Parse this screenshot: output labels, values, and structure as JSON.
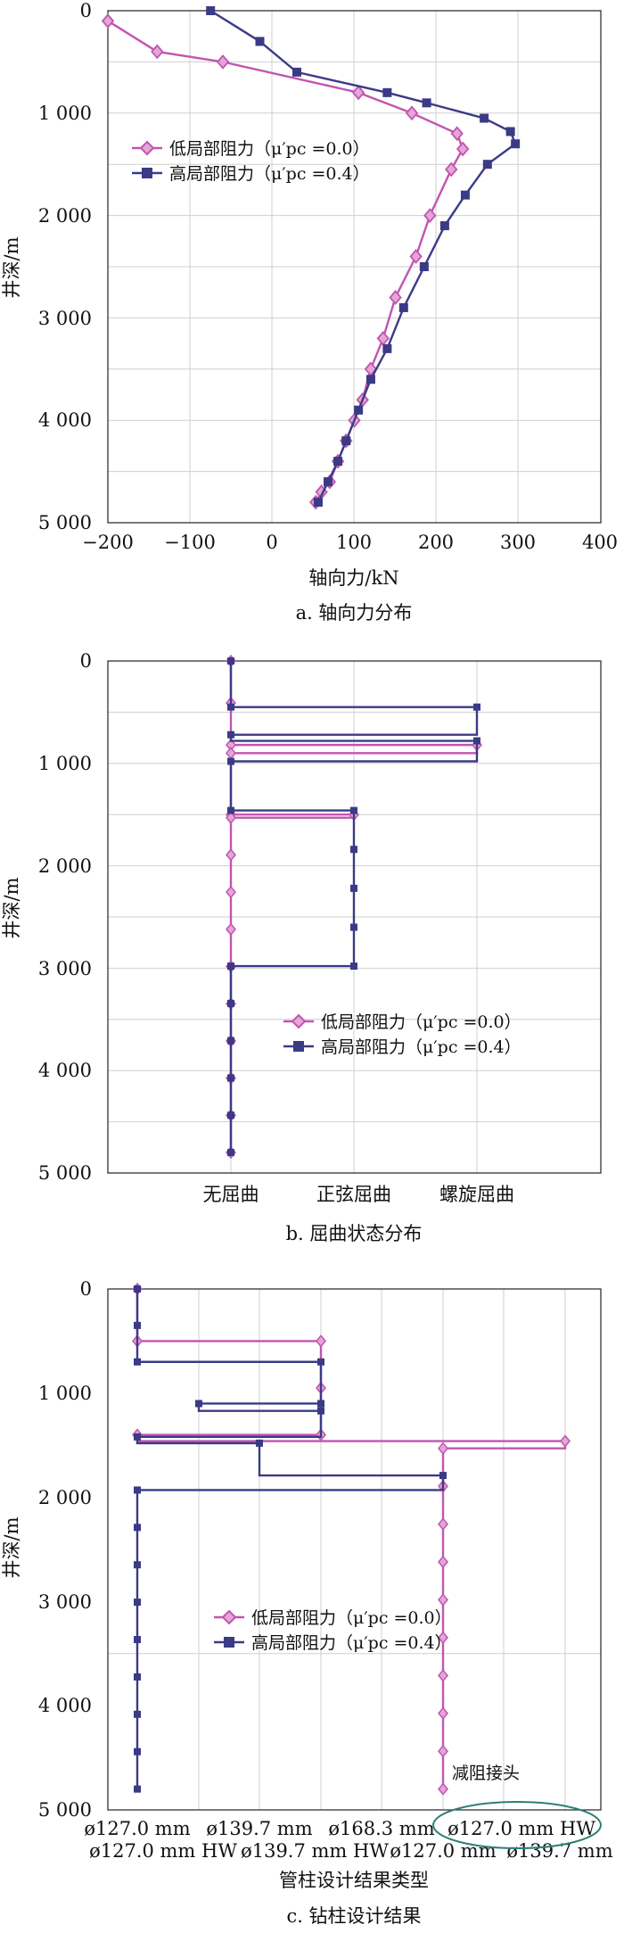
{
  "colors": {
    "low": "#c155b0",
    "high": "#3b3a86",
    "grid": "#cfcfcf",
    "ellipse": "#2f7f73"
  },
  "legend": {
    "low": "低局部阻力（μ′pc =0.0）",
    "high": "高局部阻力（μ′pc =0.4）"
  },
  "charts": {
    "a": {
      "ylabel": "井深/m",
      "xlabel": "轴向力/kN",
      "caption": "a. 轴向力分布",
      "ytick_labels": [
        "0",
        "1 000",
        "2 000",
        "3 000",
        "4 000",
        "5 000"
      ],
      "xtick_labels": [
        "−200",
        "−100",
        "0",
        "100",
        "200",
        "300",
        "400"
      ]
    },
    "b": {
      "ylabel": "井深/m",
      "caption": "b. 屈曲状态分布",
      "ytick_labels": [
        "0",
        "1 000",
        "2 000",
        "3 000",
        "4 000",
        "5 000"
      ],
      "categories": [
        "无屈曲",
        "正弦屈曲",
        "螺旋屈曲"
      ]
    },
    "c": {
      "ylabel": "井深/m",
      "xlabel": "管柱设计结果类型",
      "caption": "c. 钻柱设计结果",
      "annotation": "减阻接头",
      "ytick_labels": [
        "0",
        "1 000",
        "2 000",
        "3 000",
        "4 000",
        "5 000"
      ],
      "xtick_labels_top": [
        "ø127.0 mm",
        "ø139.7 mm",
        "ø168.3 mm",
        "ø127.0 mm HW"
      ],
      "xtick_labels_bottom": [
        "ø127.0 mm HW",
        "ø139.7 mm HW",
        "ø127.0 mm",
        "ø139.7 mm"
      ]
    }
  },
  "chart_data": [
    {
      "type": "line",
      "title": "a. 轴向力分布",
      "xlabel": "轴向力/kN",
      "ylabel": "井深/m",
      "xlim": [
        -200,
        400
      ],
      "ylim": [
        5000,
        0
      ],
      "series": [
        {
          "name": "低局部阻力（μ′pc =0.0）",
          "x": [
            -200,
            -140,
            -60,
            105,
            170,
            225,
            232,
            218,
            192,
            175,
            150,
            135,
            120,
            110,
            100,
            90,
            80,
            70,
            60,
            53
          ],
          "y": [
            100,
            400,
            500,
            800,
            1000,
            1200,
            1350,
            1550,
            2000,
            2400,
            2800,
            3200,
            3500,
            3800,
            4000,
            4200,
            4400,
            4600,
            4700,
            4800
          ]
        },
        {
          "name": "高局部阻力（μ′pc =0.4）",
          "x": [
            -75,
            -15,
            30,
            140,
            188,
            258,
            290,
            296,
            262,
            235,
            210,
            185,
            160,
            140,
            120,
            105,
            90,
            80,
            68,
            56
          ],
          "y": [
            0,
            300,
            600,
            800,
            900,
            1050,
            1180,
            1300,
            1500,
            1800,
            2100,
            2500,
            2900,
            3300,
            3600,
            3900,
            4200,
            4400,
            4600,
            4800
          ]
        }
      ]
    },
    {
      "type": "line",
      "title": "b. 屈曲状态分布",
      "ylabel": "井深/m",
      "categories": [
        "无屈曲",
        "正弦屈曲",
        "螺旋屈曲"
      ],
      "ylim": [
        5000,
        0
      ],
      "series": [
        {
          "name": "低局部阻力（μ′pc =0.0）",
          "x": [
            0,
            0,
            2,
            2,
            0,
            0,
            1,
            1,
            0,
            0
          ],
          "y": [
            0,
            820,
            820,
            900,
            900,
            1500,
            1500,
            1530,
            1530,
            4800
          ]
        },
        {
          "name": "高局部阻力（μ′pc =0.4）",
          "x": [
            0,
            0,
            2,
            2,
            0,
            0,
            2,
            2,
            0,
            0,
            1,
            1,
            0,
            0
          ],
          "y": [
            0,
            450,
            450,
            720,
            720,
            780,
            780,
            980,
            980,
            1460,
            1460,
            2980,
            2980,
            4800
          ]
        }
      ]
    },
    {
      "type": "line",
      "title": "c. 钻柱设计结果",
      "xlabel": "管柱设计结果类型",
      "ylabel": "井深/m",
      "categories": [
        "ø127.0 mm",
        "ø127.0 mm HW",
        "ø139.7 mm",
        "ø139.7 mm HW",
        "ø168.3 mm",
        "ø127.0 mm",
        "ø127.0 mm HW",
        "ø139.7 mm"
      ],
      "ylim": [
        5000,
        0
      ],
      "series": [
        {
          "name": "低局部阻力（μ′pc =0.0）",
          "x": [
            0,
            0,
            3,
            3,
            0,
            0,
            7,
            7,
            5,
            5
          ],
          "y": [
            0,
            500,
            500,
            1400,
            1400,
            1460,
            1460,
            1530,
            1530,
            4800
          ]
        },
        {
          "name": "高局部阻力（μ′pc =0.4）",
          "x": [
            0,
            0,
            3,
            3,
            1,
            1,
            3,
            3,
            0,
            0,
            2,
            2,
            5,
            5,
            0,
            0
          ],
          "y": [
            0,
            700,
            700,
            1100,
            1100,
            1170,
            1170,
            1420,
            1420,
            1480,
            1480,
            1790,
            1790,
            1930,
            1930,
            4800
          ]
        }
      ],
      "annotation": "减阻接头"
    }
  ]
}
